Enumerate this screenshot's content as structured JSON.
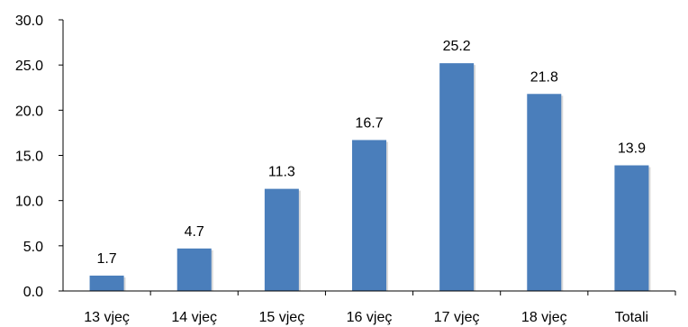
{
  "chart_data": {
    "type": "bar",
    "title": "",
    "xlabel": "",
    "ylabel": "",
    "categories": [
      "13 vjeç",
      "14 vjeç",
      "15 vjeç",
      "16 vjeç",
      "17 vjeç",
      "18 vjeç",
      "Totali"
    ],
    "values": [
      1.7,
      4.7,
      11.3,
      16.7,
      25.2,
      21.8,
      13.9
    ],
    "value_labels": [
      "1.7",
      "4.7",
      "11.3",
      "16.7",
      "25.2",
      "21.8",
      "13.9"
    ],
    "ylim": [
      0,
      30
    ],
    "yticks": [
      "0.0",
      "5.0",
      "10.0",
      "15.0",
      "20.0",
      "25.0",
      "30.0"
    ],
    "ytick_values": [
      0,
      5,
      10,
      15,
      20,
      25,
      30
    ],
    "grid": false,
    "legend": "none",
    "bar_color": "#4a7ebb"
  }
}
